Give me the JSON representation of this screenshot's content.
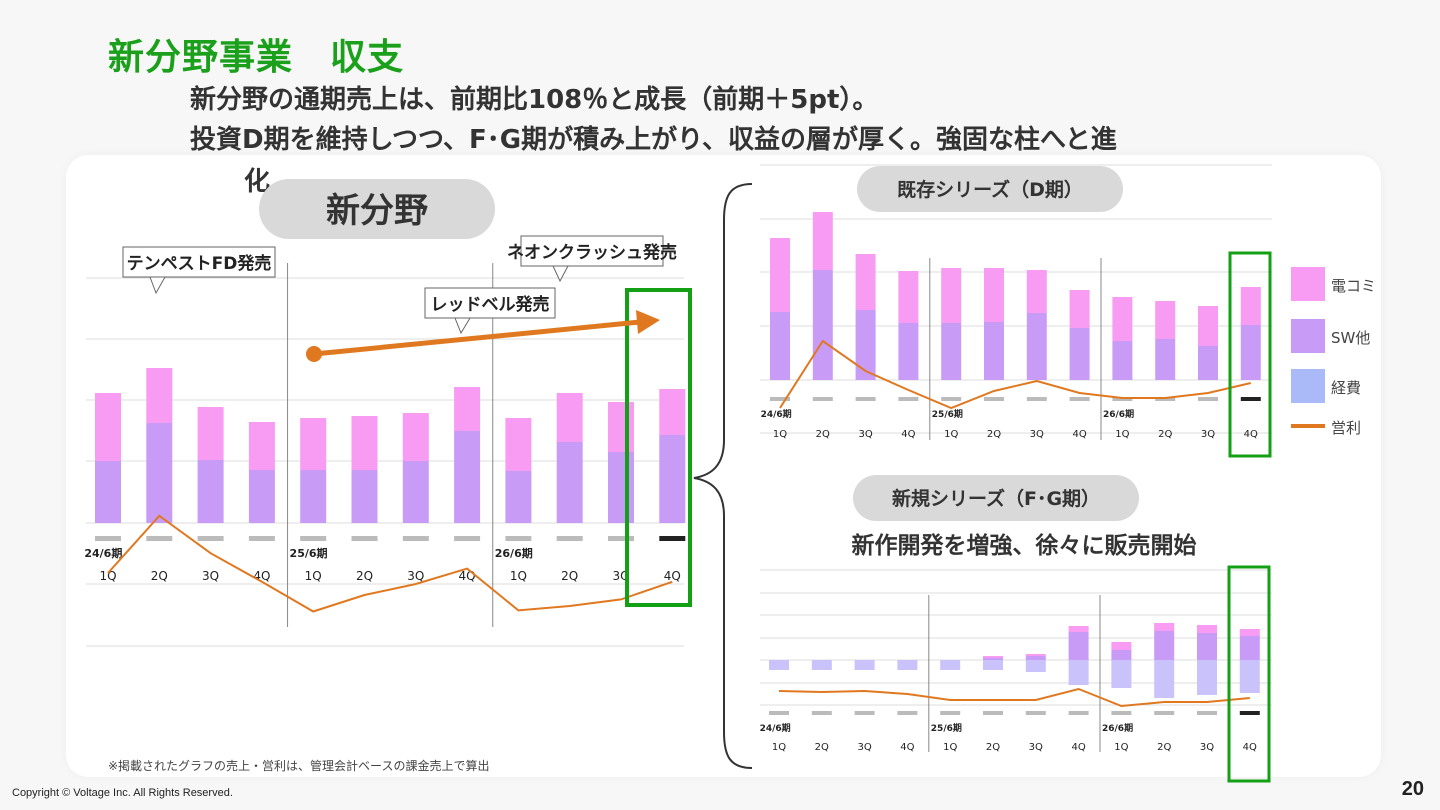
{
  "slide": {
    "title": "新分野事業　収支",
    "subtitle_line1": "新分野の通期売上は、前期比108％と成長（前期＋5pt）。",
    "subtitle_line2": "投資D期を維持しつつ、F･G期が積み上がり、収益の層が厚く。強固な柱へと進",
    "subtitle_line3": "化。",
    "note": "※掲載されたグラフの売上・営利は、管理会計ベースの課金売上で算出",
    "footer": "Copyright © Voltage Inc.  All Rights Reserved.",
    "page_number": "20",
    "colors": {
      "title": "#1aa01a",
      "highlight": "#14a014",
      "denko": "#f79cf2",
      "sw": "#c89cf6",
      "expense": "#c9c2fb",
      "profit": "#e07820",
      "arrow": "#e07820"
    }
  },
  "legend": [
    {
      "label": "電コミ",
      "color": "#f79cf2",
      "kind": "box"
    },
    {
      "label": "SW他",
      "color": "#c89cf6",
      "kind": "box"
    },
    {
      "label": "経費",
      "color": "#aab9f8",
      "kind": "box"
    },
    {
      "label": "営利",
      "color": "#e07820",
      "kind": "line"
    }
  ],
  "chart_data": [
    {
      "type": "bar",
      "title": "新分野",
      "period_labels": [
        "24/6期",
        "25/6期",
        "26/6期"
      ],
      "categories": [
        "1Q",
        "2Q",
        "3Q",
        "4Q",
        "1Q",
        "2Q",
        "3Q",
        "4Q",
        "1Q",
        "2Q",
        "3Q",
        "4Q"
      ],
      "series": [
        {
          "name": "SW他",
          "values": [
            62,
            100,
            63,
            53,
            53,
            53,
            62,
            92,
            52,
            81,
            71,
            88
          ]
        },
        {
          "name": "電コミ",
          "values": [
            68,
            55,
            53,
            48,
            52,
            54,
            48,
            44,
            53,
            49,
            50,
            46
          ]
        },
        {
          "name": "営利",
          "values": [
            0,
            52,
            18,
            -8,
            -35,
            -20,
            -10,
            4,
            -34,
            -30,
            -24,
            -8
          ]
        }
      ],
      "highlight": "4Q",
      "annotations": [
        "テンペストFD発売",
        "レッドベル発売",
        "ネオンクラッシュ発売"
      ]
    },
    {
      "type": "bar",
      "title": "既存シリーズ（D期）",
      "period_labels": [
        "24/6期",
        "25/6期",
        "26/6期"
      ],
      "categories": [
        "1Q",
        "2Q",
        "3Q",
        "4Q",
        "1Q",
        "2Q",
        "3Q",
        "4Q",
        "1Q",
        "2Q",
        "3Q",
        "4Q"
      ],
      "series": [
        {
          "name": "SW他",
          "values": [
            68,
            110,
            70,
            57,
            57,
            58,
            67,
            52,
            39,
            41,
            34,
            55
          ]
        },
        {
          "name": "電コミ",
          "values": [
            74,
            58,
            56,
            52,
            55,
            54,
            43,
            38,
            44,
            38,
            40,
            38
          ]
        },
        {
          "name": "営利",
          "values": [
            -15,
            52,
            22,
            3,
            -15,
            2,
            12,
            0,
            -5,
            -5,
            0,
            10
          ]
        }
      ],
      "highlight": "4Q"
    },
    {
      "type": "bar",
      "title": "新規シリーズ（F･G期）",
      "subtitle": "新作開発を増強、徐々に販売開始",
      "period_labels": [
        "24/6期",
        "25/6期",
        "26/6期"
      ],
      "categories": [
        "1Q",
        "2Q",
        "3Q",
        "4Q",
        "1Q",
        "2Q",
        "3Q",
        "4Q",
        "1Q",
        "2Q",
        "3Q",
        "4Q"
      ],
      "series": [
        {
          "name": "SW他",
          "values": [
            0,
            0,
            0,
            0,
            0,
            2,
            4,
            28,
            10,
            29,
            27,
            24
          ]
        },
        {
          "name": "電コミ",
          "values": [
            0,
            0,
            0,
            0,
            0,
            2,
            2,
            6,
            8,
            8,
            8,
            7
          ]
        },
        {
          "name": "経費",
          "values": [
            -10,
            -10,
            -10,
            -10,
            -10,
            -10,
            -12,
            -25,
            -28,
            -38,
            -35,
            -33
          ]
        },
        {
          "name": "営利",
          "values": [
            -9,
            -10,
            -9,
            -12,
            -18,
            -18,
            -18,
            -7,
            -24,
            -20,
            -20,
            -16
          ]
        }
      ],
      "highlight": "4Q"
    }
  ]
}
